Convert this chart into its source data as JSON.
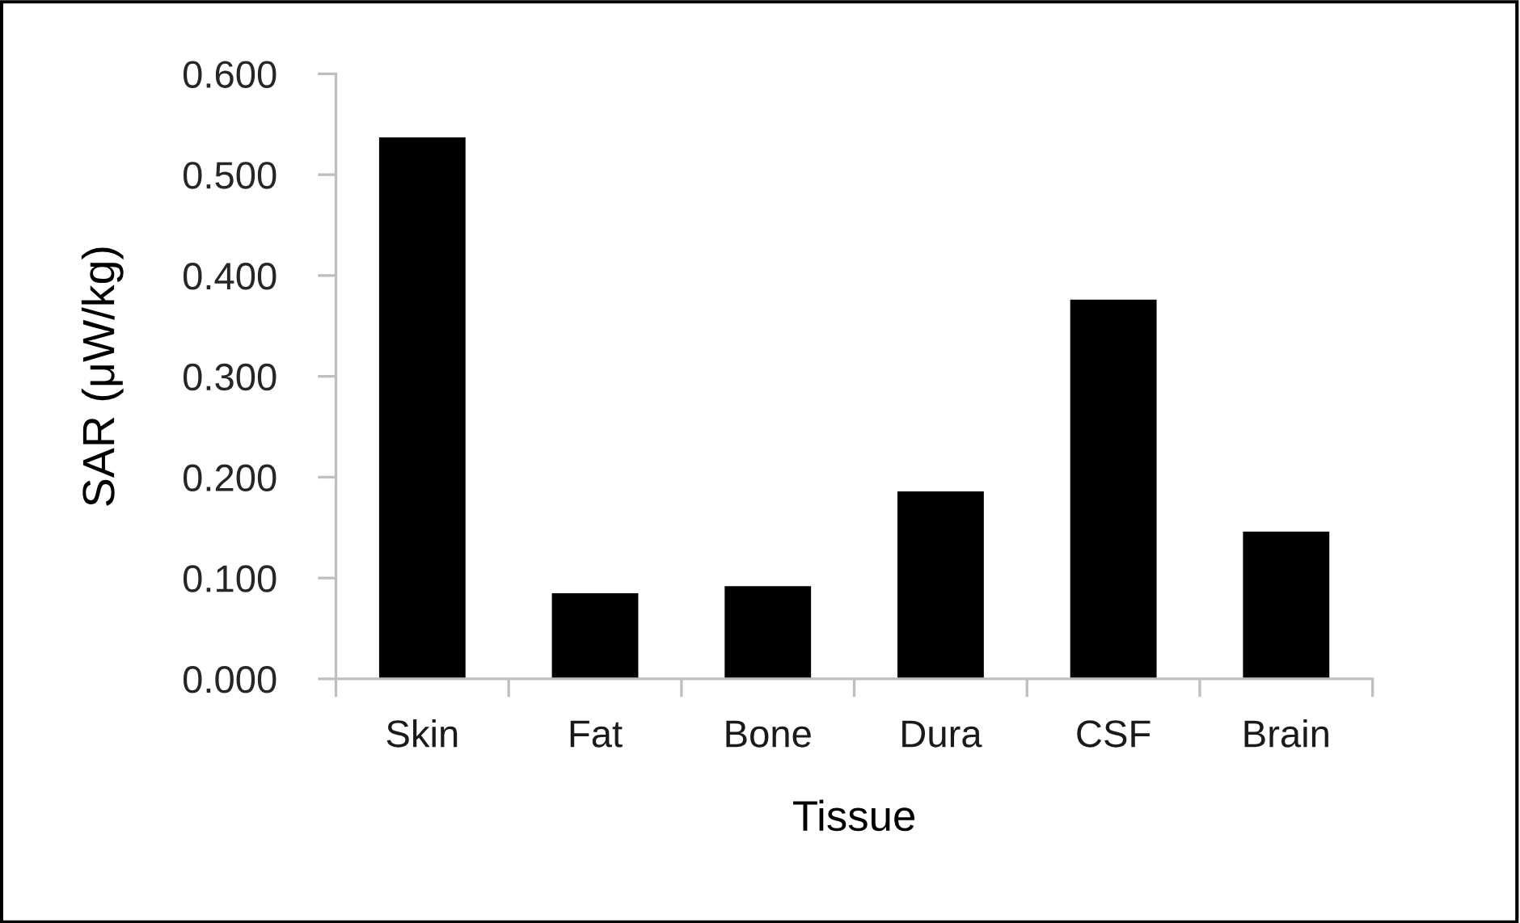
{
  "chart_data": {
    "type": "bar",
    "xlabel": "Tissue",
    "ylabel": "SAR (μW/kg)",
    "categories": [
      "Skin",
      "Fat",
      "Bone",
      "Dura",
      "CSF",
      "Brain"
    ],
    "values": [
      0.537,
      0.085,
      0.092,
      0.186,
      0.376,
      0.146
    ],
    "color": "#000000",
    "ylim": [
      0,
      0.6
    ],
    "yticks": [
      {
        "value": 0,
        "label": "0.000"
      },
      {
        "value": 0.1,
        "label": "0.100"
      },
      {
        "value": 0.2,
        "label": "0.200"
      },
      {
        "value": 0.3,
        "label": "0.300"
      },
      {
        "value": 0.4,
        "label": "0.400"
      },
      {
        "value": 0.5,
        "label": "0.500"
      },
      {
        "value": 0.6,
        "label": "0.600"
      }
    ],
    "grid": false,
    "legend": false
  }
}
